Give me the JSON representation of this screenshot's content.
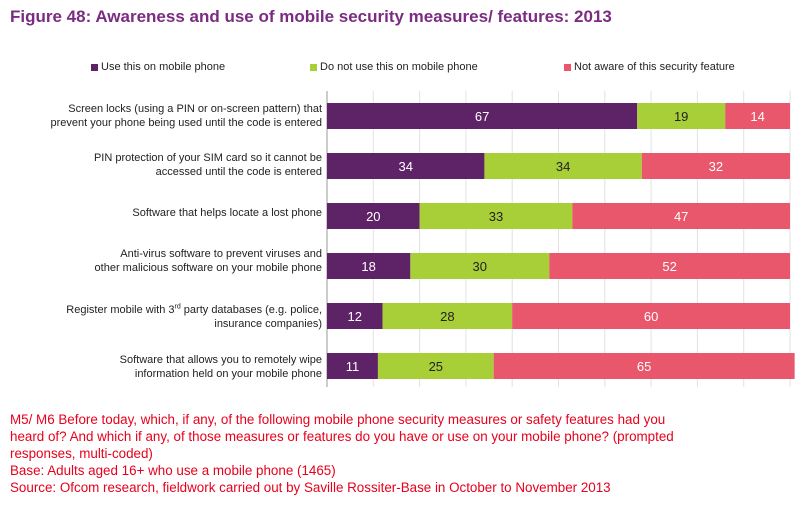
{
  "title": "Figure 48: Awareness and use of mobile security measures/ features: 2013",
  "chart_data": {
    "type": "bar",
    "orientation": "horizontal",
    "stacked": true,
    "xlim": [
      0,
      100
    ],
    "legend_position": "top",
    "grid": true,
    "categories": [
      "Screen locks (using a PIN or on-screen pattern) that prevent your phone being used until the code is entered",
      "PIN protection of your SIM card so it cannot be accessed until the code is entered",
      "Software that helps locate a lost phone",
      "Anti-virus software to prevent viruses and other malicious software on your mobile phone",
      "Register mobile with 3rd party databases (e.g. police, insurance companies)",
      "Software that allows you to remotely wipe information held on your mobile phone"
    ],
    "series": [
      {
        "name": "Use this on mobile phone",
        "color": "#5E2366",
        "values": [
          67,
          34,
          20,
          18,
          12,
          11
        ]
      },
      {
        "name": "Do not use this on mobile phone",
        "color": "#A8CE38",
        "values": [
          19,
          34,
          33,
          30,
          28,
          25
        ]
      },
      {
        "name": "Not aware of this security feature",
        "color": "#E8576B",
        "values": [
          14,
          32,
          47,
          52,
          60,
          65
        ]
      }
    ]
  },
  "row_labels": [
    {
      "line1": "Screen locks (using a PIN or on-screen pattern) that",
      "line2": "prevent your phone being used until the code is entered"
    },
    {
      "line1": "PIN protection of your SIM card so it cannot be",
      "line2": "accessed until the code is entered"
    },
    {
      "line1": "Software that helps locate a lost phone",
      "line2": ""
    },
    {
      "line1": "Anti-virus software to prevent viruses and",
      "line2": "other malicious software on your mobile phone"
    },
    {
      "pre": "Register mobile with 3",
      "sup": "rd",
      "post": " party databases (e.g. police,",
      "line2": "insurance companies)"
    },
    {
      "line1": "Software that allows you to remotely wipe",
      "line2": "information held on your mobile phone"
    }
  ],
  "footnote": {
    "line1": "M5/ M6 Before today, which, if any, of the following mobile phone security measures or safety features had you",
    "line2": "heard of? And which if any, of those measures or features do you have or use on your mobile phone? (prompted",
    "line3": "responses, multi-coded)",
    "line4": "Base: Adults aged 16+ who use a mobile phone (1465)",
    "line5": "Source: Ofcom research, fieldwork carried out by Saville Rossiter-Base in October to November 2013"
  }
}
